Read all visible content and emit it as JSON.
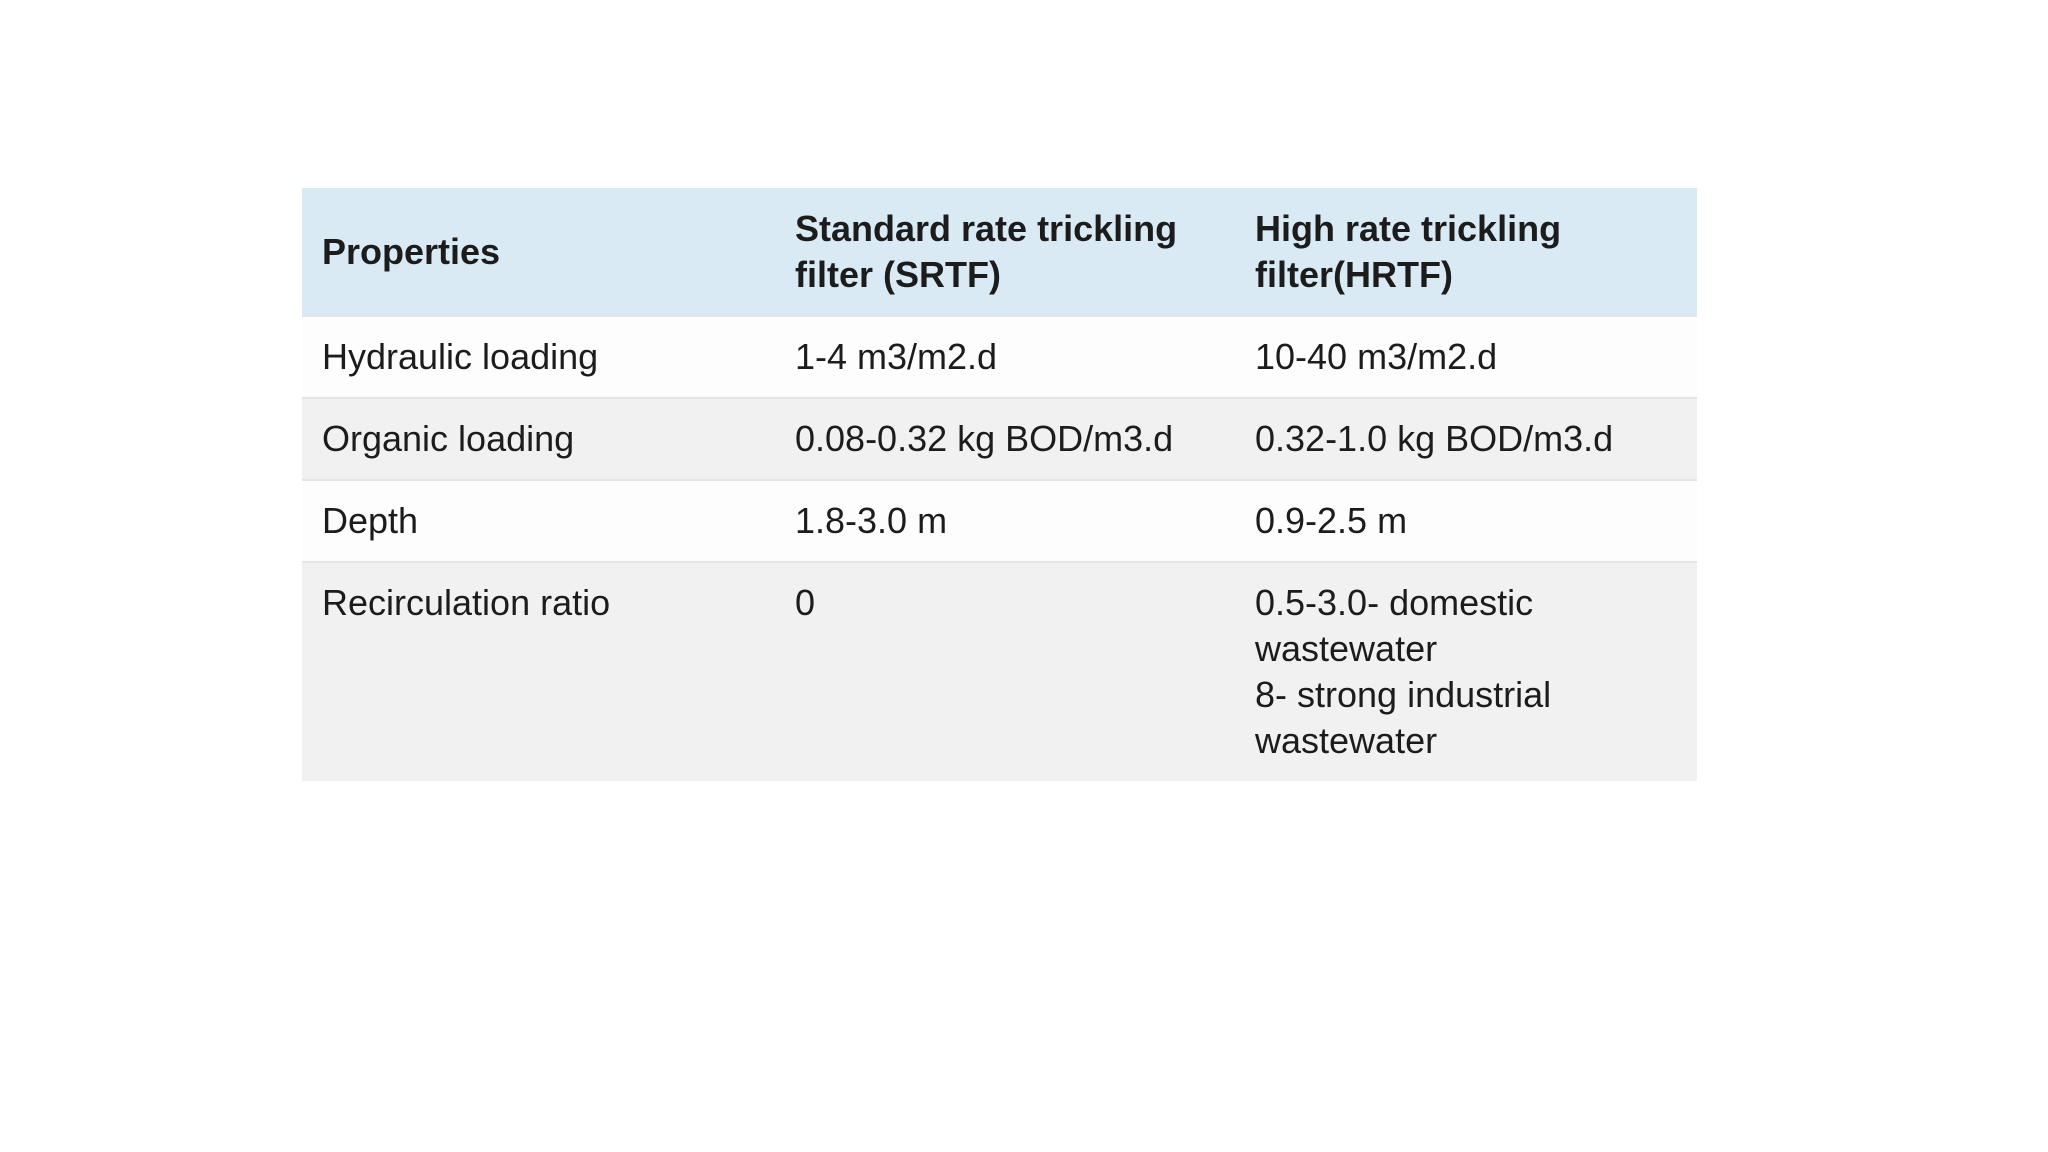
{
  "colors": {
    "page_bg": "#ffffff",
    "header_bg": "#d9eaf4",
    "row_light": "#fdfdfd",
    "row_dark": "#f2f1f2",
    "row_border": "#e5e3e6",
    "text": "#1c1c1c"
  },
  "table": {
    "header": {
      "properties": "Properties",
      "srtf_lines": [
        "Standard rate trickling",
        "filter (SRTF)"
      ],
      "hrtf_lines": [
        "High rate trickling",
        "filter(HRTF)"
      ]
    },
    "rows": [
      {
        "property": "Hydraulic loading",
        "srtf": "1-4 m3/m2.d",
        "hrtf_lines": [
          "10-40 m3/m2.d"
        ]
      },
      {
        "property": "Organic loading",
        "srtf": "0.08-0.32 kg BOD/m3.d",
        "hrtf_lines": [
          "0.32-1.0 kg BOD/m3.d"
        ]
      },
      {
        "property": "Depth",
        "srtf": "1.8-3.0 m",
        "hrtf_lines": [
          "0.9-2.5 m"
        ]
      },
      {
        "property": "Recirculation ratio",
        "srtf": "0",
        "hrtf_lines": [
          "0.5-3.0- domestic",
          "wastewater",
          "8- strong industrial",
          "wastewater"
        ]
      }
    ]
  }
}
